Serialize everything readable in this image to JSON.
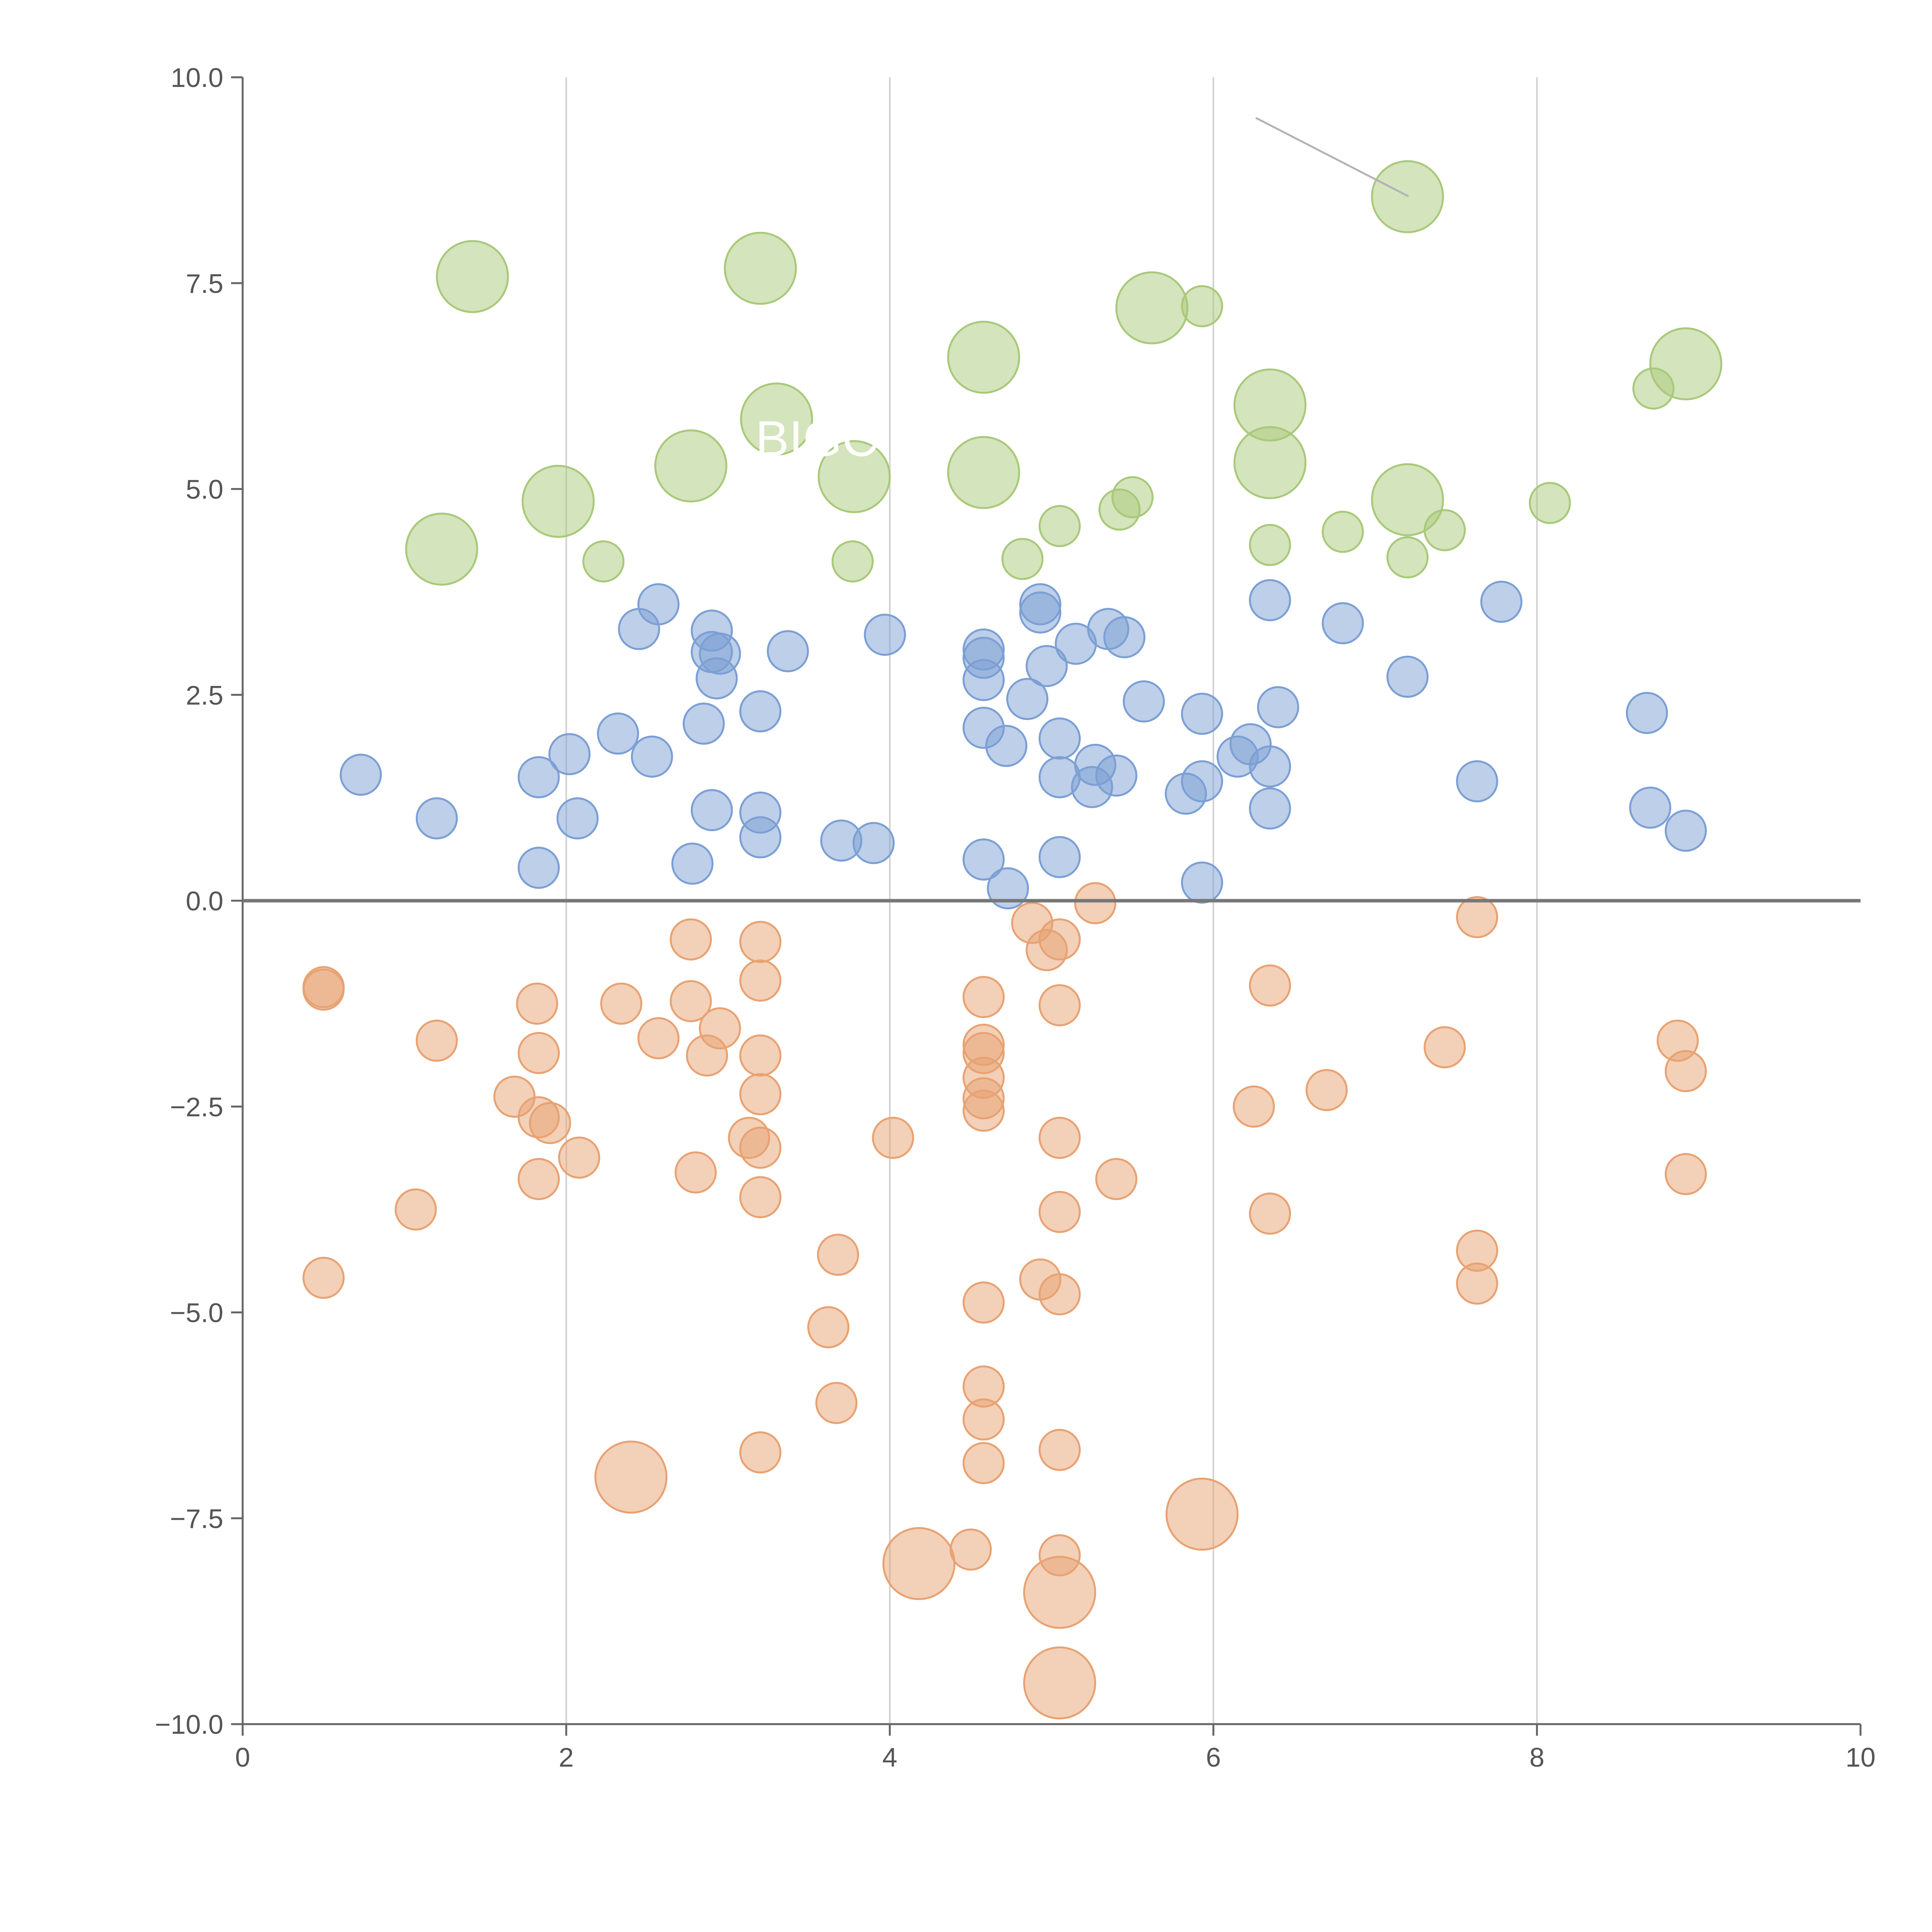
{
  "chart_data": {
    "type": "scatter",
    "title": "",
    "xlabel": "",
    "ylabel": "",
    "xlim": [
      0,
      10
    ],
    "ylim": [
      -10,
      10
    ],
    "x_ticks": [
      "0",
      "2",
      "4",
      "6",
      "8",
      "10"
    ],
    "y_ticks": [
      "10.0",
      "7.5",
      "5.0",
      "2.5",
      "0.0",
      "−2.5",
      "−5.0",
      "−7.5",
      "−10.0"
    ],
    "x_tick_values": [
      0,
      2,
      4,
      6,
      8,
      10
    ],
    "y_tick_values": [
      10,
      7.5,
      5,
      2.5,
      0,
      -2.5,
      -5,
      -7.5,
      -10
    ],
    "vertical_grid": true,
    "zero_line": true,
    "legend": "none",
    "overlay_text": "BIGC",
    "colors": {
      "green": "#a9c97a",
      "blue": "#7c9fd4",
      "orange": "#e8a272",
      "axis": "#666666",
      "grid": "#d0d0d0"
    },
    "series": [
      {
        "name": "green",
        "color": "#a9c97a",
        "points": [
          [
            1.42,
            7.58,
            2
          ],
          [
            3.2,
            7.68,
            2
          ],
          [
            5.62,
            7.2,
            2
          ],
          [
            5.93,
            7.22,
            1
          ],
          [
            7.2,
            8.55,
            2
          ],
          [
            4.58,
            6.6,
            2
          ],
          [
            6.35,
            6.02,
            2
          ],
          [
            8.92,
            6.52,
            2
          ],
          [
            8.72,
            6.22,
            1
          ],
          [
            3.3,
            5.85,
            2
          ],
          [
            2.77,
            5.28,
            2
          ],
          [
            3.78,
            5.15,
            2
          ],
          [
            4.58,
            5.2,
            2
          ],
          [
            6.35,
            5.32,
            2
          ],
          [
            1.95,
            4.85,
            2
          ],
          [
            7.2,
            4.87,
            2
          ],
          [
            5.5,
            4.9,
            1
          ],
          [
            5.42,
            4.75,
            1
          ],
          [
            5.05,
            4.55,
            1
          ],
          [
            7.43,
            4.5,
            1
          ],
          [
            6.8,
            4.48,
            1
          ],
          [
            8.08,
            4.83,
            1
          ],
          [
            6.35,
            4.32,
            1
          ],
          [
            1.23,
            4.27,
            2
          ],
          [
            2.23,
            4.12,
            1
          ],
          [
            3.77,
            4.12,
            1
          ],
          [
            4.82,
            4.15,
            1
          ],
          [
            7.2,
            4.17,
            1
          ]
        ]
      },
      {
        "name": "blue",
        "color": "#7c9fd4",
        "points": [
          [
            2.57,
            3.6,
            1
          ],
          [
            2.45,
            3.3,
            1
          ],
          [
            2.9,
            3.28,
            1
          ],
          [
            2.9,
            3.02,
            1
          ],
          [
            2.95,
            3.0,
            1
          ],
          [
            2.93,
            2.7,
            1
          ],
          [
            3.37,
            3.03,
            1
          ],
          [
            3.97,
            3.23,
            1
          ],
          [
            4.58,
            3.05,
            1
          ],
          [
            4.58,
            2.95,
            1
          ],
          [
            4.58,
            2.68,
            1
          ],
          [
            4.93,
            3.6,
            1
          ],
          [
            4.93,
            3.5,
            1
          ],
          [
            4.97,
            2.85,
            1
          ],
          [
            5.15,
            3.12,
            1
          ],
          [
            5.35,
            3.3,
            1
          ],
          [
            5.45,
            3.2,
            1
          ],
          [
            6.35,
            3.65,
            1
          ],
          [
            6.8,
            3.37,
            1
          ],
          [
            7.78,
            3.63,
            1
          ],
          [
            4.85,
            2.45,
            1
          ],
          [
            5.57,
            2.42,
            1
          ],
          [
            5.93,
            2.27,
            1
          ],
          [
            6.4,
            2.35,
            1
          ],
          [
            7.2,
            2.72,
            1
          ],
          [
            8.68,
            2.28,
            1
          ],
          [
            2.32,
            2.03,
            1
          ],
          [
            2.53,
            1.75,
            1
          ],
          [
            2.85,
            2.15,
            1
          ],
          [
            3.2,
            2.3,
            1
          ],
          [
            4.58,
            2.1,
            1
          ],
          [
            4.72,
            1.88,
            1
          ],
          [
            5.05,
            1.97,
            1
          ],
          [
            6.15,
            1.75,
            1
          ],
          [
            6.23,
            1.9,
            1
          ],
          [
            0.73,
            1.53,
            1
          ],
          [
            1.83,
            1.5,
            1
          ],
          [
            2.02,
            1.78,
            1
          ],
          [
            5.05,
            1.5,
            1
          ],
          [
            5.27,
            1.65,
            1
          ],
          [
            5.25,
            1.38,
            1
          ],
          [
            5.4,
            1.52,
            1
          ],
          [
            5.83,
            1.3,
            1
          ],
          [
            5.93,
            1.45,
            1
          ],
          [
            6.35,
            1.63,
            1
          ],
          [
            6.35,
            1.12,
            1
          ],
          [
            7.63,
            1.45,
            1
          ],
          [
            1.2,
            1.0,
            1
          ],
          [
            2.07,
            1.0,
            1
          ],
          [
            2.9,
            1.1,
            1
          ],
          [
            3.2,
            1.07,
            1
          ],
          [
            3.2,
            0.77,
            1
          ],
          [
            3.7,
            0.73,
            1
          ],
          [
            3.9,
            0.7,
            1
          ],
          [
            8.7,
            1.13,
            1
          ],
          [
            8.92,
            0.85,
            1
          ],
          [
            1.83,
            0.4,
            1
          ],
          [
            2.78,
            0.45,
            1
          ],
          [
            4.58,
            0.5,
            1
          ],
          [
            5.05,
            0.53,
            1
          ],
          [
            4.73,
            0.15,
            1
          ],
          [
            5.93,
            0.22,
            1
          ]
        ]
      },
      {
        "name": "orange",
        "color": "#e8a272",
        "points": [
          [
            5.27,
            -0.03,
            1
          ],
          [
            4.88,
            -0.27,
            1
          ],
          [
            5.05,
            -0.47,
            1
          ],
          [
            4.97,
            -0.6,
            1
          ],
          [
            7.63,
            -0.2,
            1
          ],
          [
            2.77,
            -0.47,
            1
          ],
          [
            3.2,
            -0.5,
            1
          ],
          [
            3.2,
            -0.97,
            1
          ],
          [
            0.5,
            -1.05,
            1
          ],
          [
            0.5,
            -1.08,
            1
          ],
          [
            1.82,
            -1.25,
            1
          ],
          [
            2.34,
            -1.25,
            1
          ],
          [
            2.77,
            -1.22,
            1
          ],
          [
            4.58,
            -1.17,
            1
          ],
          [
            5.05,
            -1.27,
            1
          ],
          [
            6.35,
            -1.03,
            1
          ],
          [
            1.2,
            -1.7,
            1
          ],
          [
            2.57,
            -1.67,
            1
          ],
          [
            2.95,
            -1.55,
            1
          ],
          [
            2.87,
            -1.88,
            1
          ],
          [
            1.83,
            -1.85,
            1
          ],
          [
            3.2,
            -1.88,
            1
          ],
          [
            4.58,
            -1.75,
            1
          ],
          [
            4.58,
            -1.85,
            1
          ],
          [
            4.58,
            -2.15,
            1
          ],
          [
            7.43,
            -1.78,
            1
          ],
          [
            8.87,
            -1.7,
            1
          ],
          [
            8.92,
            -2.07,
            1
          ],
          [
            1.68,
            -2.38,
            1
          ],
          [
            3.2,
            -2.35,
            1
          ],
          [
            4.58,
            -2.4,
            1
          ],
          [
            4.58,
            -2.55,
            1
          ],
          [
            6.25,
            -2.5,
            1
          ],
          [
            6.7,
            -2.3,
            1
          ],
          [
            1.83,
            -2.63,
            1
          ],
          [
            1.9,
            -2.7,
            1
          ],
          [
            2.08,
            -3.12,
            1
          ],
          [
            3.13,
            -2.88,
            1
          ],
          [
            3.2,
            -3.0,
            1
          ],
          [
            4.02,
            -2.88,
            1
          ],
          [
            5.05,
            -2.88,
            1
          ],
          [
            1.83,
            -3.38,
            1
          ],
          [
            2.8,
            -3.3,
            1
          ],
          [
            5.4,
            -3.38,
            1
          ],
          [
            8.92,
            -3.32,
            1
          ],
          [
            1.07,
            -3.75,
            1
          ],
          [
            3.2,
            -3.6,
            1
          ],
          [
            5.05,
            -3.78,
            1
          ],
          [
            6.35,
            -3.8,
            1
          ],
          [
            3.68,
            -4.3,
            1
          ],
          [
            7.63,
            -4.25,
            1
          ],
          [
            7.63,
            -4.65,
            1
          ],
          [
            0.5,
            -4.58,
            1
          ],
          [
            4.93,
            -4.6,
            1
          ],
          [
            5.05,
            -4.78,
            1
          ],
          [
            4.58,
            -4.88,
            1
          ],
          [
            3.62,
            -5.18,
            1
          ],
          [
            3.67,
            -6.1,
            1
          ],
          [
            4.58,
            -5.9,
            1
          ],
          [
            4.58,
            -6.3,
            1
          ],
          [
            3.2,
            -6.7,
            1
          ],
          [
            4.58,
            -6.83,
            1
          ],
          [
            5.05,
            -6.67,
            1
          ],
          [
            2.4,
            -7.0,
            2
          ],
          [
            4.5,
            -7.88,
            1
          ],
          [
            4.18,
            -8.05,
            2
          ],
          [
            5.05,
            -7.95,
            1
          ],
          [
            5.93,
            -7.45,
            2
          ],
          [
            5.05,
            -8.4,
            2
          ],
          [
            5.05,
            -9.5,
            2
          ]
        ]
      }
    ]
  }
}
